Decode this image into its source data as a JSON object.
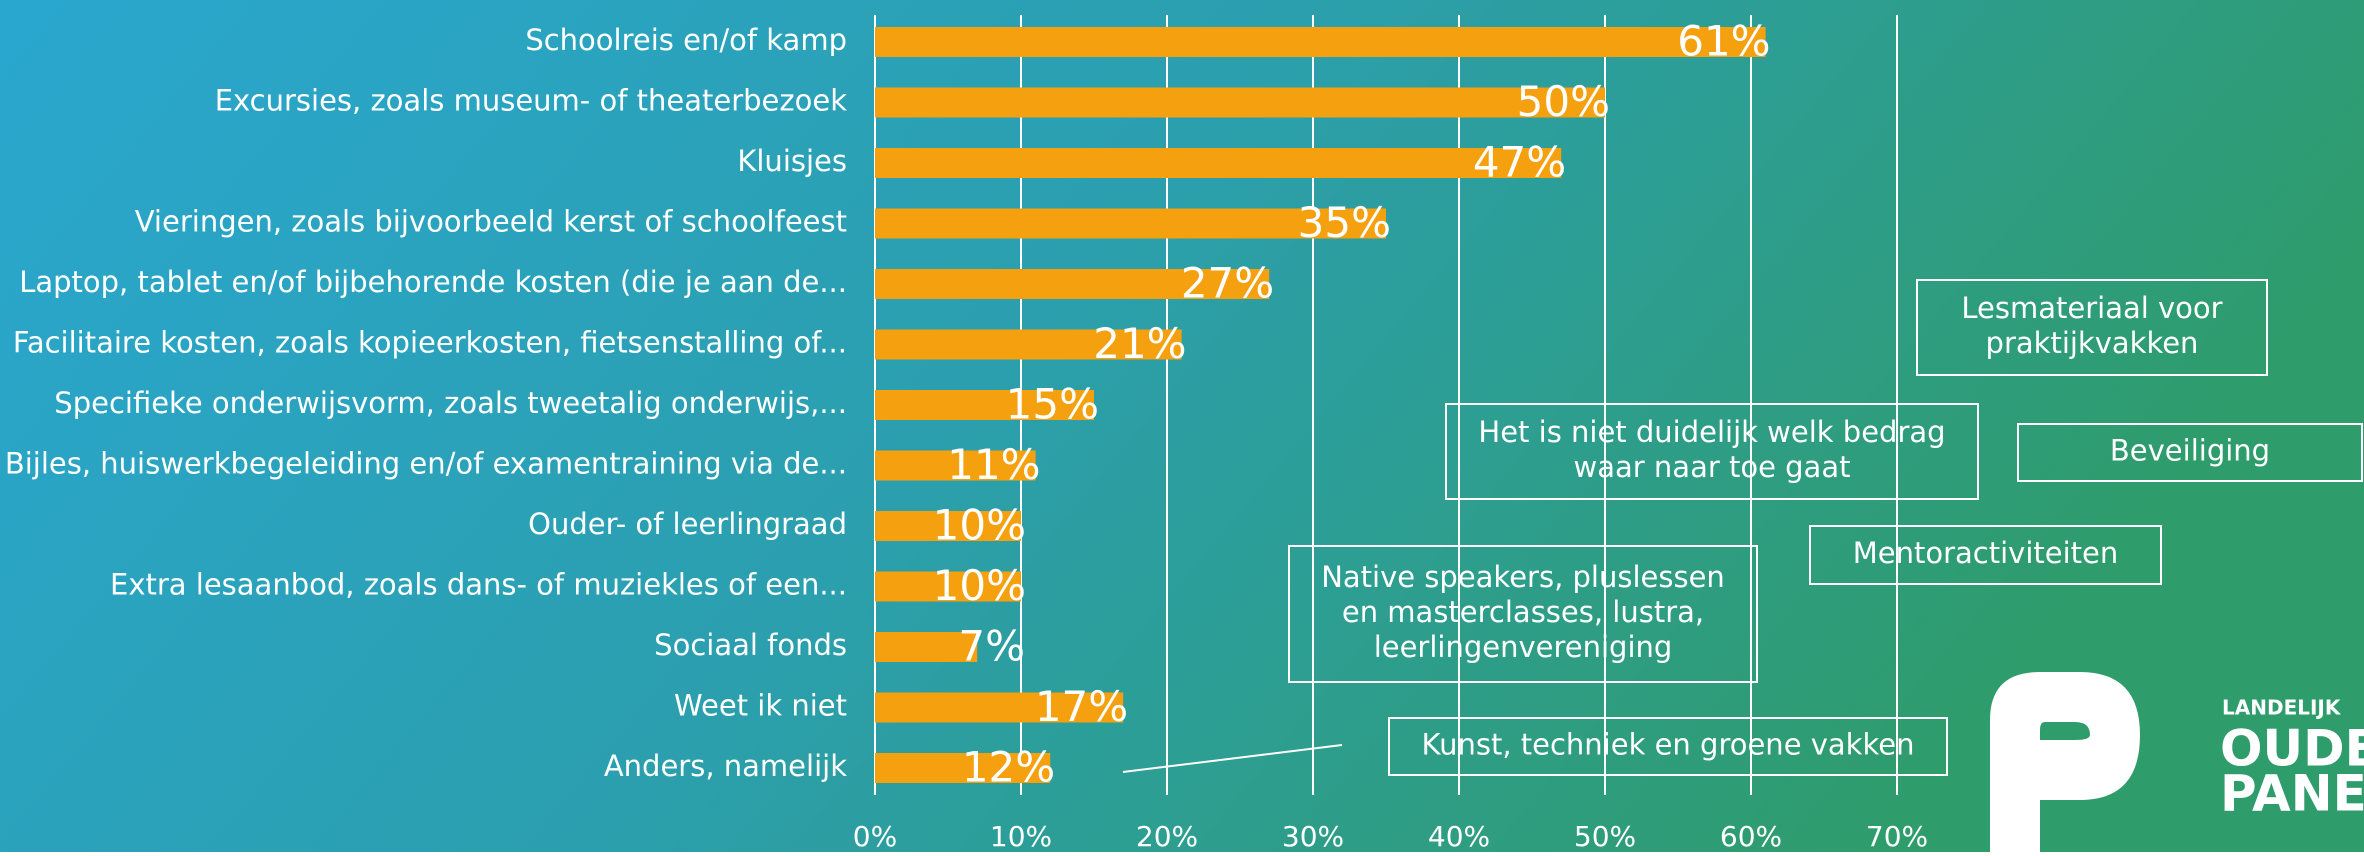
{
  "chart_data": {
    "type": "bar",
    "orientation": "horizontal",
    "categories": [
      "Schoolreis en/of kamp",
      "Excursies, zoals museum- of theaterbezoek",
      "Kluisjes",
      "Vieringen, zoals bijvoorbeeld kerst of schoolfeest",
      "Laptop, tablet en/of bijbehorende kosten (die je aan de...",
      "Facilitaire kosten, zoals kopieerkosten, fietsenstalling of...",
      "Specifieke onderwijsvorm, zoals tweetalig onderwijs,...",
      "Bijles, huiswerkbegeleiding en/of examentraining via de...",
      "Ouder- of leerlingraad",
      "Extra lesaanbod, zoals dans- of muziekles of een...",
      "Sociaal fonds",
      "Weet ik niet",
      "Anders, namelijk"
    ],
    "values": [
      61,
      50,
      47,
      35,
      27,
      21,
      15,
      11,
      10,
      10,
      7,
      17,
      12
    ],
    "value_labels": [
      "61%",
      "50%",
      "47%",
      "35%",
      "27%",
      "21%",
      "15%",
      "11%",
      "10%",
      "10%",
      "7%",
      "17%",
      "12%"
    ],
    "color": "#f5a00f",
    "xlim": [
      0,
      70
    ],
    "xticks": [
      {
        "value": 0,
        "label": "0%"
      },
      {
        "value": 10,
        "label": "10%"
      },
      {
        "value": 20,
        "label": "20%"
      },
      {
        "value": 30,
        "label": "30%"
      },
      {
        "value": 40,
        "label": "40%"
      },
      {
        "value": 50,
        "label": "50%"
      },
      {
        "value": 60,
        "label": "60%"
      },
      {
        "value": 70,
        "label": "70%"
      }
    ],
    "grid": true,
    "annotations": [
      {
        "lines": [
          "Lesmateriaal voor",
          "praktijkvakken"
        ]
      },
      {
        "lines": [
          "Het is niet duidelijk welk bedrag",
          "waar naar toe gaat"
        ]
      },
      {
        "lines": [
          "Beveiliging"
        ]
      },
      {
        "lines": [
          "Mentoractiviteiten"
        ]
      },
      {
        "lines": [
          "Native speakers, pluslessen",
          "en masterclasses, lustra,",
          "leerlingenvereniging"
        ]
      },
      {
        "lines": [
          "Kunst, techniek en groene vakken"
        ]
      }
    ]
  },
  "logo": {
    "lines": [
      "LANDELIJK",
      "OUDE",
      "PANE"
    ]
  }
}
